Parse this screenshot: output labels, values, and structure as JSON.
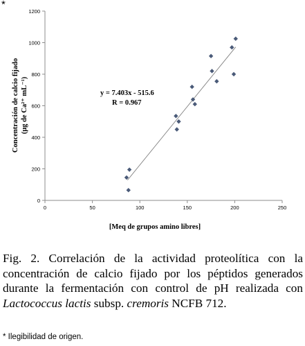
{
  "corner_mark": "*",
  "chart_data": {
    "type": "scatter",
    "xlabel": "[Meq de grupos amino libres]",
    "ylabel_line1": "Concentración de calcio fijado",
    "ylabel_line2": "(μg de Ca²⁺ mL⁻¹)",
    "xlim": [
      0,
      250
    ],
    "ylim": [
      0,
      1200
    ],
    "x_ticks": [
      0,
      50,
      100,
      150,
      200,
      250
    ],
    "y_ticks": [
      0,
      200,
      400,
      600,
      800,
      1000,
      1200
    ],
    "grid": false,
    "points": [
      {
        "x": 86,
        "y": 145
      },
      {
        "x": 88,
        "y": 65
      },
      {
        "x": 89,
        "y": 195
      },
      {
        "x": 138,
        "y": 535
      },
      {
        "x": 139,
        "y": 450
      },
      {
        "x": 141,
        "y": 500
      },
      {
        "x": 155,
        "y": 720
      },
      {
        "x": 156,
        "y": 640
      },
      {
        "x": 158,
        "y": 610
      },
      {
        "x": 175,
        "y": 915
      },
      {
        "x": 176,
        "y": 820
      },
      {
        "x": 181,
        "y": 755
      },
      {
        "x": 197,
        "y": 970
      },
      {
        "x": 199,
        "y": 800
      },
      {
        "x": 201,
        "y": 1025
      }
    ],
    "trendline": {
      "slope": 7.403,
      "intercept": -515.6,
      "x_range": [
        87,
        201
      ]
    },
    "equation_text": "y = 7.403x - 515.6",
    "r_text": "R = 0.967",
    "marker_color": "#4a5a78",
    "line_color": "#808080",
    "axis_color": "#8c8c8c"
  },
  "caption": {
    "text_main": "Fig. 2. Correlación de la actividad proteolítica con la concentración de calcio fijado por los péptidos generados durante la fermentación con control de pH realizada con ",
    "italic_species": "Lactococcus lactis",
    "text_subsp": " subsp. ",
    "italic_cremoris": "cremoris",
    "text_end": " NCFB 712."
  },
  "footnote": "* Ilegibilidad de origen."
}
